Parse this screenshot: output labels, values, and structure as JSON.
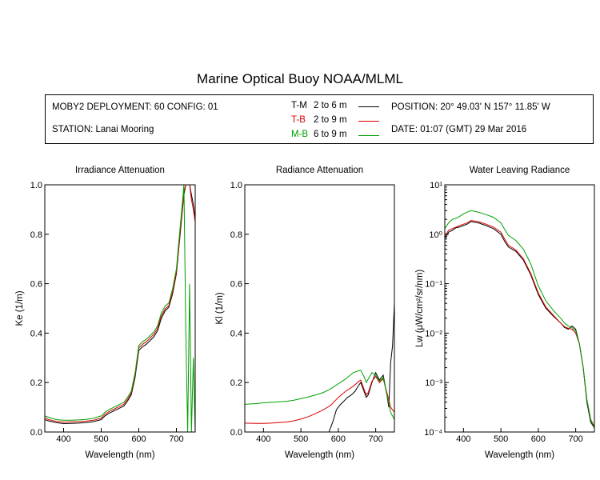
{
  "title": "Marine Optical Buoy NOAA/MLML",
  "info": {
    "deployment": "MOBY2 DEPLOYMENT: 60 CONFIG: 01",
    "station": "STATION: Lanai Mooring",
    "position": "POSITION: 20° 49.03' N   157° 11.85' W",
    "date": "DATE: 01:07 (GMT) 29 Mar 2016"
  },
  "legend": [
    {
      "code": "T-M",
      "range": "2 to 6  m",
      "color": "#000000"
    },
    {
      "code": "T-B",
      "range": "2 to 9  m",
      "color": "#dd0000"
    },
    {
      "code": "M-B",
      "range": "6 to 9  m",
      "color": "#00a000"
    }
  ],
  "chart_data": [
    {
      "type": "line",
      "title": "Irradiance Attenuation",
      "xlabel": "Wavelength (nm)",
      "ylabel": "Ke  (1/m)",
      "xlim": [
        350,
        750
      ],
      "ylim": [
        0,
        1
      ],
      "xticks": [
        400,
        500,
        600,
        700
      ],
      "yticks": [
        0.0,
        0.2,
        0.4,
        0.6,
        0.8,
        1.0
      ],
      "ytick_labels": [
        "0.0",
        "0.2",
        "0.4",
        "0.6",
        "0.8",
        "1.0"
      ],
      "series": [
        {
          "name": "T-M",
          "color": "#000000",
          "x": [
            350,
            360,
            380,
            400,
            420,
            440,
            460,
            480,
            500,
            510,
            520,
            540,
            560,
            570,
            580,
            590,
            600,
            610,
            620,
            640,
            650,
            660,
            670,
            680,
            690,
            700,
            710,
            715,
            720,
            725,
            730,
            735,
            740,
            745,
            750
          ],
          "y": [
            0.05,
            0.045,
            0.038,
            0.034,
            0.035,
            0.036,
            0.038,
            0.042,
            0.05,
            0.065,
            0.075,
            0.09,
            0.105,
            0.125,
            0.15,
            0.22,
            0.33,
            0.345,
            0.355,
            0.385,
            0.41,
            0.46,
            0.49,
            0.505,
            0.56,
            0.64,
            0.8,
            0.88,
            0.96,
            1.0,
            1.0,
            1.0,
            0.96,
            0.92,
            0.86
          ]
        },
        {
          "name": "T-B",
          "color": "#dd0000",
          "x": [
            350,
            360,
            380,
            400,
            420,
            440,
            460,
            480,
            500,
            510,
            520,
            540,
            560,
            570,
            580,
            590,
            600,
            610,
            620,
            640,
            650,
            660,
            670,
            680,
            690,
            700,
            710,
            715,
            720,
            725,
            730,
            735,
            740,
            745,
            750
          ],
          "y": [
            0.058,
            0.05,
            0.043,
            0.04,
            0.041,
            0.042,
            0.044,
            0.048,
            0.056,
            0.072,
            0.082,
            0.097,
            0.112,
            0.132,
            0.158,
            0.23,
            0.34,
            0.355,
            0.365,
            0.395,
            0.42,
            0.47,
            0.498,
            0.512,
            0.568,
            0.648,
            0.81,
            0.89,
            0.97,
            1.0,
            1.0,
            1.0,
            0.94,
            0.9,
            0.85
          ]
        },
        {
          "name": "M-B",
          "color": "#00a000",
          "x": [
            350,
            360,
            380,
            400,
            420,
            440,
            460,
            480,
            500,
            510,
            520,
            540,
            560,
            570,
            580,
            590,
            600,
            610,
            620,
            640,
            650,
            660,
            670,
            680,
            690,
            700,
            710,
            715,
            720,
            725,
            730,
            735,
            740,
            745,
            750
          ],
          "y": [
            0.065,
            0.06,
            0.05,
            0.048,
            0.048,
            0.049,
            0.051,
            0.056,
            0.065,
            0.08,
            0.09,
            0.105,
            0.12,
            0.14,
            0.165,
            0.238,
            0.35,
            0.365,
            0.375,
            0.405,
            0.43,
            0.482,
            0.51,
            0.522,
            0.58,
            0.66,
            0.83,
            0.91,
            1.0,
            0.4,
            0.0,
            0.6,
            0.0,
            0.3,
            0.0
          ]
        }
      ]
    },
    {
      "type": "line",
      "title": "Radiance Attenuation",
      "xlabel": "Wavelength (nm)",
      "ylabel": "Kl  (1/m)",
      "xlim": [
        350,
        750
      ],
      "ylim": [
        0,
        1
      ],
      "xticks": [
        400,
        500,
        600,
        700
      ],
      "yticks": [
        0.0,
        0.2,
        0.4,
        0.6,
        0.8,
        1.0
      ],
      "ytick_labels": [
        "0.0",
        "0.2",
        "0.4",
        "0.6",
        "0.8",
        "1.0"
      ],
      "series": [
        {
          "name": "T-M",
          "color": "#000000",
          "x": [
            575,
            585,
            595,
            605,
            615,
            625,
            635,
            645,
            655,
            660,
            670,
            675,
            680,
            690,
            700,
            710,
            720,
            730,
            735,
            740,
            745,
            750
          ],
          "y": [
            0.0,
            0.04,
            0.09,
            0.11,
            0.125,
            0.14,
            0.15,
            0.165,
            0.19,
            0.2,
            0.16,
            0.14,
            0.15,
            0.2,
            0.24,
            0.21,
            0.23,
            0.15,
            0.1,
            0.28,
            0.35,
            0.52
          ]
        },
        {
          "name": "T-B",
          "color": "#dd0000",
          "x": [
            350,
            380,
            400,
            420,
            440,
            460,
            480,
            500,
            520,
            540,
            560,
            580,
            600,
            620,
            640,
            655,
            660,
            670,
            675,
            680,
            690,
            700,
            710,
            720,
            730,
            740,
            750
          ],
          "y": [
            0.036,
            0.035,
            0.035,
            0.036,
            0.038,
            0.04,
            0.045,
            0.052,
            0.062,
            0.075,
            0.09,
            0.108,
            0.14,
            0.165,
            0.185,
            0.205,
            0.21,
            0.168,
            0.15,
            0.16,
            0.205,
            0.225,
            0.2,
            0.215,
            0.16,
            0.1,
            0.08
          ]
        },
        {
          "name": "M-B",
          "color": "#00a000",
          "x": [
            350,
            380,
            400,
            420,
            440,
            460,
            480,
            500,
            520,
            540,
            560,
            580,
            600,
            620,
            640,
            655,
            660,
            670,
            675,
            680,
            690,
            700,
            710,
            720,
            730,
            740,
            750
          ],
          "y": [
            0.112,
            0.115,
            0.118,
            0.12,
            0.122,
            0.124,
            0.128,
            0.135,
            0.142,
            0.15,
            0.16,
            0.175,
            0.195,
            0.215,
            0.24,
            0.248,
            0.25,
            0.22,
            0.2,
            0.215,
            0.24,
            0.23,
            0.205,
            0.22,
            0.15,
            0.08,
            0.05
          ]
        }
      ]
    },
    {
      "type": "line",
      "title": "Water Leaving Radiance",
      "xlabel": "Wavelength (nm)",
      "ylabel": "Lw  (μW/cm²/sr/nm)",
      "yscale": "log",
      "xlim": [
        350,
        750
      ],
      "ylim": [
        0.0001,
        10
      ],
      "xticks": [
        400,
        500,
        600,
        700
      ],
      "yticks": [
        0.0001,
        0.001,
        0.01,
        0.1,
        1,
        10
      ],
      "ytick_labels": [
        "10⁻⁴",
        "10⁻³",
        "10⁻²",
        "10⁻¹",
        "10⁰",
        "10¹"
      ],
      "series": [
        {
          "name": "T-M",
          "color": "#000000",
          "x": [
            350,
            360,
            370,
            380,
            390,
            400,
            410,
            420,
            440,
            460,
            480,
            500,
            510,
            520,
            540,
            560,
            580,
            600,
            620,
            640,
            660,
            670,
            680,
            690,
            700,
            710,
            720,
            730,
            740,
            750
          ],
          "y": [
            0.8,
            1.1,
            1.2,
            1.35,
            1.4,
            1.5,
            1.6,
            1.8,
            1.7,
            1.5,
            1.3,
            1.0,
            0.72,
            0.55,
            0.45,
            0.3,
            0.15,
            0.06,
            0.032,
            0.022,
            0.016,
            0.013,
            0.012,
            0.014,
            0.012,
            0.006,
            0.002,
            0.0004,
            0.00016,
            0.00012
          ]
        },
        {
          "name": "T-B",
          "color": "#dd0000",
          "x": [
            350,
            360,
            370,
            380,
            390,
            400,
            410,
            420,
            440,
            460,
            480,
            500,
            510,
            520,
            540,
            560,
            580,
            600,
            620,
            640,
            660,
            670,
            680,
            690,
            700,
            710,
            720,
            730,
            740,
            750
          ],
          "y": [
            0.9,
            1.2,
            1.3,
            1.4,
            1.5,
            1.6,
            1.7,
            1.9,
            1.8,
            1.6,
            1.4,
            1.1,
            0.8,
            0.6,
            0.48,
            0.32,
            0.16,
            0.065,
            0.034,
            0.023,
            0.016,
            0.0135,
            0.0125,
            0.012,
            0.01,
            0.006,
            0.002,
            0.00045,
            0.00018,
            0.00013
          ]
        },
        {
          "name": "M-B",
          "color": "#00a000",
          "x": [
            350,
            360,
            370,
            380,
            390,
            400,
            410,
            420,
            440,
            460,
            480,
            500,
            510,
            520,
            540,
            560,
            580,
            600,
            620,
            640,
            660,
            670,
            680,
            690,
            700,
            710,
            720,
            730,
            740,
            750
          ],
          "y": [
            1.3,
            1.7,
            2.0,
            2.1,
            2.3,
            2.6,
            2.8,
            3.0,
            2.8,
            2.5,
            2.2,
            1.7,
            1.25,
            0.95,
            0.75,
            0.5,
            0.25,
            0.09,
            0.045,
            0.029,
            0.02,
            0.016,
            0.014,
            0.013,
            0.011,
            0.006,
            0.002,
            0.00045,
            0.00018,
            0.00012
          ]
        }
      ]
    }
  ]
}
